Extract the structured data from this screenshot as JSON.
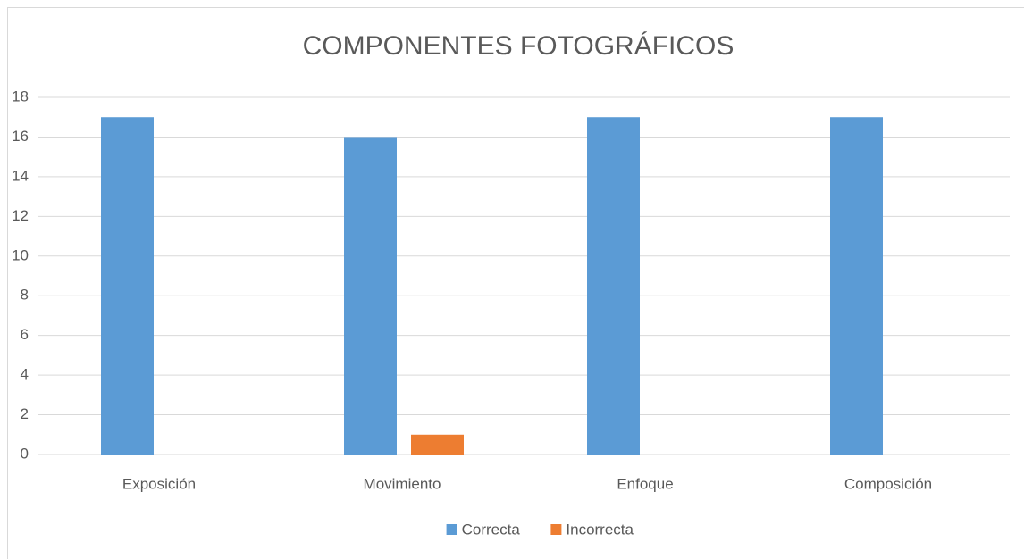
{
  "chart_data": {
    "type": "bar",
    "title": "COMPONENTES FOTOGRÁFICOS",
    "categories": [
      "Exposición",
      "Movimiento",
      "Enfoque",
      "Composición"
    ],
    "series": [
      {
        "name": "Correcta",
        "color": "#5b9bd5",
        "values": [
          17,
          16,
          17,
          17
        ]
      },
      {
        "name": "Incorrecta",
        "color": "#ed7d31",
        "values": [
          0,
          1,
          0,
          0
        ]
      }
    ],
    "ylim": [
      0,
      18
    ],
    "yticks": [
      0,
      2,
      4,
      6,
      8,
      10,
      12,
      14,
      16,
      18
    ],
    "grid": true,
    "legend": "bottom"
  }
}
